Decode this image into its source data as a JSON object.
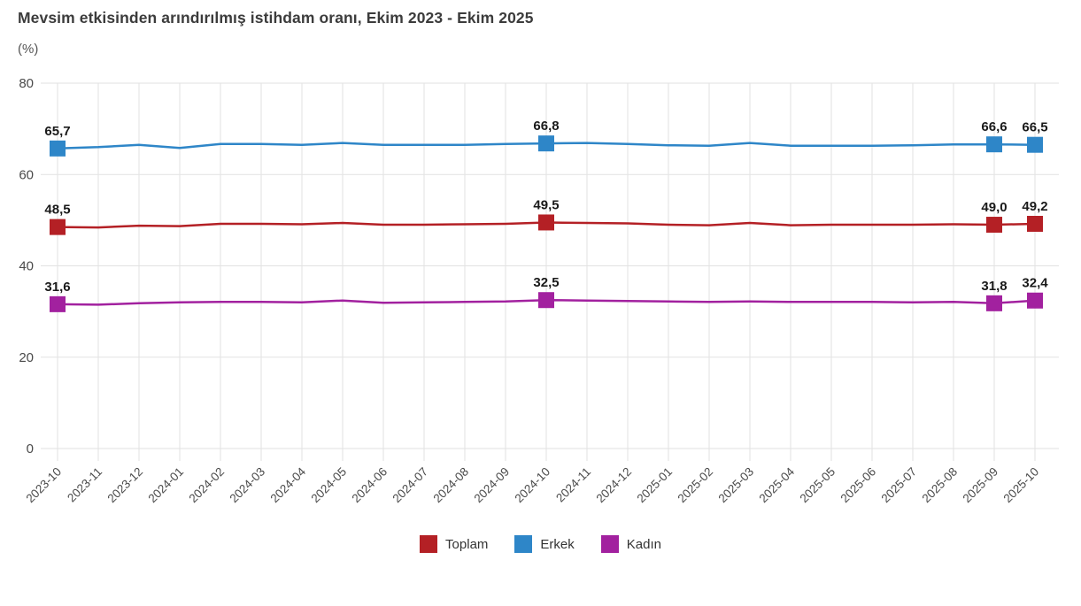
{
  "chart_data": {
    "type": "line",
    "title": "Mevsim etkisinden arındırılmış istihdam oranı, Ekim 2023 - Ekim 2025",
    "subtitle": "(%)",
    "xlabel": "",
    "ylabel": "(%)",
    "ylim": [
      0,
      80
    ],
    "yticks": [
      0,
      20,
      40,
      60,
      80
    ],
    "grid": true,
    "legend_position": "bottom",
    "marker_shape": "square",
    "labeled_point_indices": [
      0,
      12,
      23,
      24
    ],
    "categories": [
      "2023-10",
      "2023-11",
      "2023-12",
      "2024-01",
      "2024-02",
      "2024-03",
      "2024-04",
      "2024-05",
      "2024-06",
      "2024-07",
      "2024-08",
      "2024-09",
      "2024-10",
      "2024-11",
      "2024-12",
      "2025-01",
      "2025-02",
      "2025-03",
      "2025-04",
      "2025-05",
      "2025-06",
      "2025-07",
      "2025-08",
      "2025-09",
      "2025-10"
    ],
    "series": [
      {
        "name": "Toplam",
        "color": "#B42025",
        "values": [
          48.5,
          48.4,
          48.8,
          48.7,
          49.2,
          49.2,
          49.1,
          49.4,
          49.0,
          49.0,
          49.1,
          49.2,
          49.5,
          49.4,
          49.3,
          49.0,
          48.9,
          49.4,
          48.9,
          49.0,
          49.0,
          49.0,
          49.1,
          49.0,
          49.2
        ],
        "point_labels": {
          "0": "48,5",
          "12": "49,5",
          "23": "49,0",
          "24": "49,2"
        }
      },
      {
        "name": "Erkek",
        "color": "#2E86C8",
        "values": [
          65.7,
          66.0,
          66.5,
          65.8,
          66.7,
          66.7,
          66.5,
          66.9,
          66.5,
          66.5,
          66.5,
          66.7,
          66.8,
          66.9,
          66.7,
          66.4,
          66.3,
          66.9,
          66.3,
          66.3,
          66.3,
          66.4,
          66.6,
          66.6,
          66.5
        ],
        "point_labels": {
          "0": "65,7",
          "12": "66,8",
          "23": "66,6",
          "24": "66,5"
        }
      },
      {
        "name": "Kadın",
        "color": "#A2219F",
        "values": [
          31.6,
          31.5,
          31.8,
          32.0,
          32.1,
          32.1,
          32.0,
          32.4,
          31.9,
          32.0,
          32.1,
          32.2,
          32.5,
          32.4,
          32.3,
          32.2,
          32.1,
          32.2,
          32.1,
          32.1,
          32.1,
          32.0,
          32.1,
          31.8,
          32.4
        ],
        "point_labels": {
          "0": "31,6",
          "12": "32,5",
          "23": "31,8",
          "24": "32,4"
        }
      }
    ],
    "axis_text_color": "#4a4a4a",
    "grid_color": "#e2e2e2",
    "data_label_color": "#1a1a1a"
  }
}
